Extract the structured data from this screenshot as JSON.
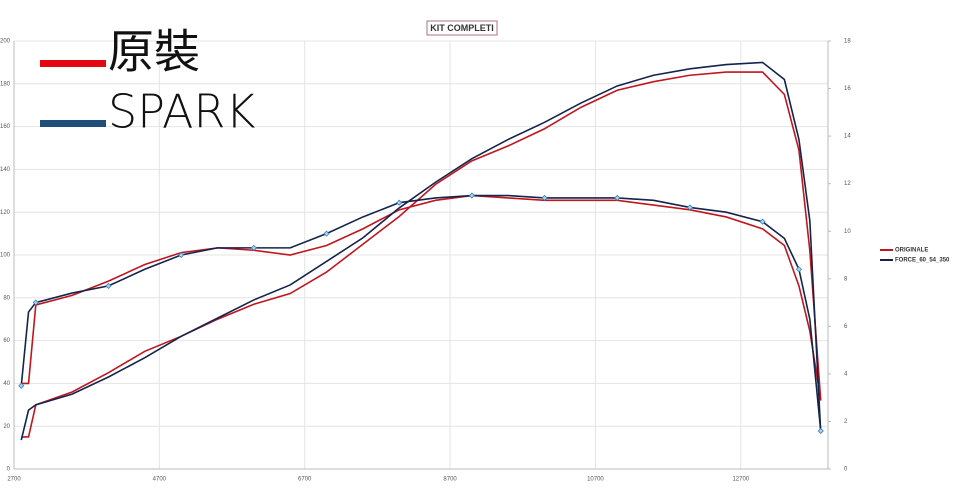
{
  "chart_data": {
    "type": "line",
    "title": "KIT COMPLETI",
    "annotations": [
      {
        "text": "原裝",
        "color": "#e30613"
      },
      {
        "text": "SPARK",
        "color": "#1f4e79"
      }
    ],
    "x": [
      2800,
      2900,
      3000,
      3500,
      4000,
      4500,
      5000,
      5500,
      6000,
      6500,
      7000,
      7500,
      8000,
      8500,
      9000,
      9500,
      10000,
      10500,
      11000,
      11500,
      12000,
      12500,
      13000,
      13300,
      13500,
      13650,
      13800
    ],
    "series": [
      {
        "name": "ORIGINALE",
        "color": "#c0161f",
        "values": [
          15,
          15,
          30,
          36,
          45,
          55,
          62,
          70,
          77,
          82,
          92,
          105,
          118,
          133,
          144,
          151,
          159,
          169,
          177,
          181,
          184,
          185.5,
          185.5,
          175,
          149,
          102,
          32
        ],
        "y2_values": [
          3.6,
          3.6,
          6.9,
          7.3,
          7.9,
          8.6,
          9.1,
          9.3,
          9.2,
          9.0,
          9.4,
          10.1,
          10.9,
          11.3,
          11.5,
          11.4,
          11.3,
          11.3,
          11.3,
          11.1,
          10.9,
          10.6,
          10.1,
          9.4,
          7.7,
          5.8,
          2.9
        ]
      },
      {
        "name": "FORCE_60_54_350",
        "color": "#14244a",
        "values": [
          13.5,
          27.5,
          30,
          35,
          43,
          52,
          62,
          70.5,
          79,
          86,
          97,
          108,
          122,
          134,
          145,
          154,
          162,
          171,
          179,
          184,
          187,
          189,
          190,
          182,
          154,
          116,
          17
        ],
        "y2_values": [
          3.5,
          6.6,
          7.0,
          7.4,
          7.7,
          8.4,
          9.0,
          9.3,
          9.3,
          9.3,
          9.9,
          10.6,
          11.2,
          11.4,
          11.5,
          11.5,
          11.4,
          11.4,
          11.4,
          11.3,
          11.0,
          10.8,
          10.4,
          9.7,
          8.4,
          6.3,
          1.6
        ]
      }
    ],
    "xlim": [
      2700,
      13900
    ],
    "xticks": [
      2700,
      4700,
      6700,
      8700,
      10700,
      12700
    ],
    "ylim": [
      0,
      200
    ],
    "yticks": [
      0,
      20,
      40,
      60,
      80,
      100,
      120,
      140,
      160,
      180,
      200
    ],
    "y2lim": [
      0,
      18
    ],
    "y2ticks": [
      0,
      2,
      4,
      6,
      8,
      10,
      12,
      14,
      16,
      18
    ],
    "grid": true,
    "legend": "right"
  }
}
